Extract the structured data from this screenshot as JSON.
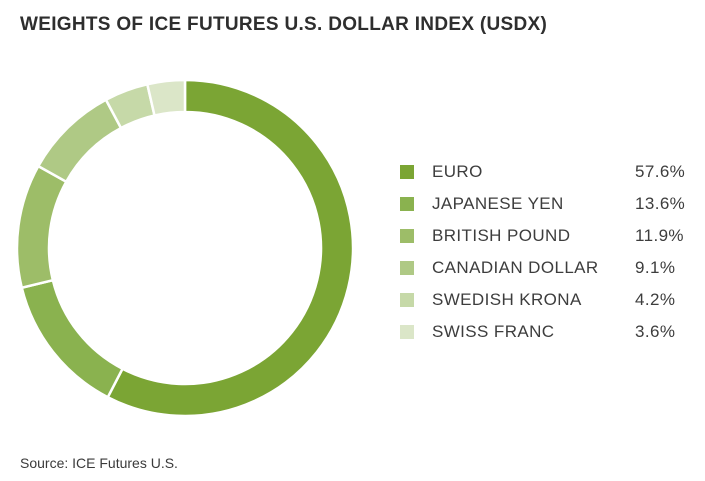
{
  "title": "WEIGHTS OF ICE FUTURES U.S. DOLLAR INDEX (USDX)",
  "source": "Source: ICE Futures U.S.",
  "chart_data": {
    "type": "pie",
    "style": "donut",
    "title": "WEIGHTS OF ICE FUTURES U.S. DOLLAR INDEX (USDX)",
    "legend_position": "right",
    "slices": [
      {
        "label": "EURO",
        "value": 57.6,
        "display": "57.6%",
        "color": "#7ba534"
      },
      {
        "label": "JAPANESE YEN",
        "value": 13.6,
        "display": "13.6%",
        "color": "#8ab24f"
      },
      {
        "label": "BRITISH POUND",
        "value": 11.9,
        "display": "11.9%",
        "color": "#9dbd68"
      },
      {
        "label": "CANADIAN DOLLAR",
        "value": 9.1,
        "display": "9.1%",
        "color": "#afc985"
      },
      {
        "label": "SWEDISH KRONA",
        "value": 4.2,
        "display": "4.2%",
        "color": "#c6d9a8"
      },
      {
        "label": "SWISS FRANC",
        "value": 3.6,
        "display": "3.6%",
        "color": "#dbe6c8"
      }
    ]
  }
}
